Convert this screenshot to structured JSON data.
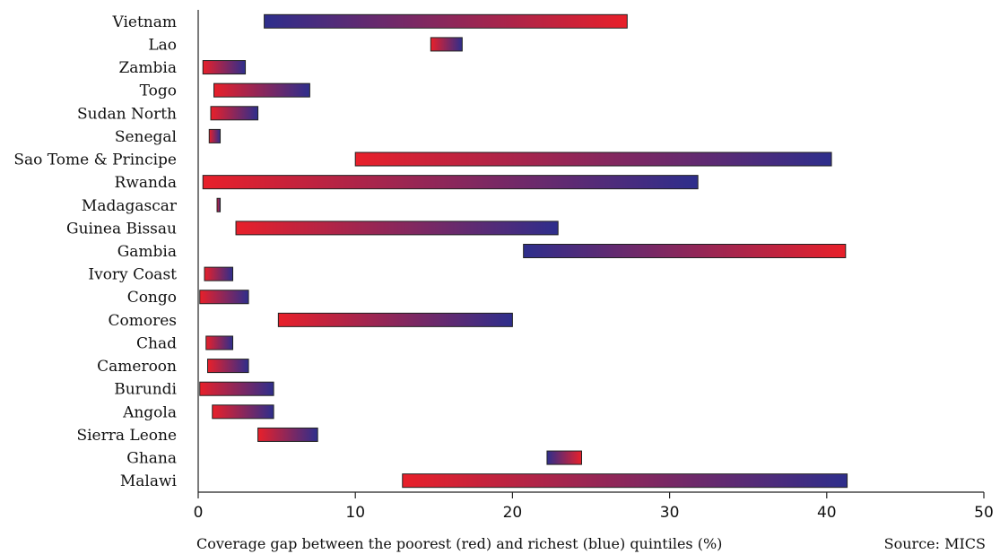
{
  "colors": {
    "poorest": "#e8202a",
    "richest": "#2e2e8c"
  },
  "chart_data": {
    "type": "bar",
    "orientation": "horizontal",
    "subtype": "range",
    "xlabel": "Coverage gap between the poorest (red) and richest (blue) quintiles (%)",
    "source": "Source: MICS",
    "xlim": [
      0,
      50
    ],
    "xticks": [
      0,
      10,
      20,
      30,
      40,
      50
    ],
    "grid": false,
    "categories": [
      "Vietnam",
      "Lao",
      "Zambia",
      "Togo",
      "Sudan North",
      "Senegal",
      "Sao Tome & Principe",
      "Rwanda",
      "Madagascar",
      "Guinea Bissau",
      "Gambia",
      "Ivory Coast",
      "Congo",
      "Comores",
      "Chad",
      "Cameroon",
      "Burundi",
      "Angola",
      "Sierra Leone",
      "Ghana",
      "Malawi"
    ],
    "poorest": [
      27.3,
      14.8,
      0.3,
      1.0,
      0.8,
      0.7,
      10.0,
      0.3,
      1.2,
      2.4,
      41.2,
      0.4,
      0.1,
      5.1,
      0.5,
      0.6,
      0.1,
      0.9,
      3.8,
      24.4,
      13.0
    ],
    "richest": [
      4.2,
      16.8,
      3.0,
      7.1,
      3.8,
      1.4,
      40.3,
      31.8,
      1.4,
      22.9,
      20.7,
      2.2,
      3.2,
      20.0,
      2.2,
      3.2,
      4.8,
      4.8,
      7.6,
      22.2,
      41.3
    ]
  }
}
